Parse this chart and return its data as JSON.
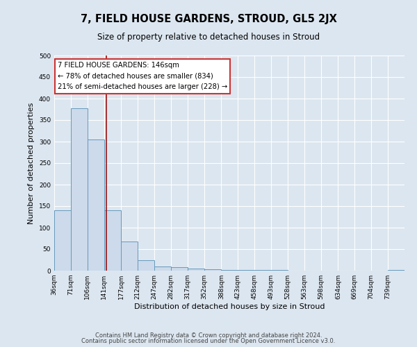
{
  "title": "7, FIELD HOUSE GARDENS, STROUD, GL5 2JX",
  "subtitle": "Size of property relative to detached houses in Stroud",
  "xlabel": "Distribution of detached houses by size in Stroud",
  "ylabel": "Number of detached properties",
  "footer_line1": "Contains HM Land Registry data © Crown copyright and database right 2024.",
  "footer_line2": "Contains public sector information licensed under the Open Government Licence v3.0.",
  "bin_labels": [
    "36sqm",
    "71sqm",
    "106sqm",
    "141sqm",
    "177sqm",
    "212sqm",
    "247sqm",
    "282sqm",
    "317sqm",
    "352sqm",
    "388sqm",
    "423sqm",
    "458sqm",
    "493sqm",
    "528sqm",
    "563sqm",
    "598sqm",
    "634sqm",
    "669sqm",
    "704sqm",
    "739sqm"
  ],
  "bar_heights": [
    140,
    378,
    305,
    141,
    68,
    24,
    10,
    8,
    5,
    3,
    2,
    1,
    1,
    1,
    0,
    0,
    0,
    0,
    0,
    0,
    2
  ],
  "bar_color": "#ccdaeb",
  "bar_edge_color": "#6699bb",
  "vline_x": 146,
  "bin_edges": [
    36,
    71,
    106,
    141,
    177,
    212,
    247,
    282,
    317,
    352,
    388,
    423,
    458,
    493,
    528,
    563,
    598,
    634,
    669,
    704,
    739
  ],
  "bin_width": 35,
  "annotation_text_line1": "7 FIELD HOUSE GARDENS: 146sqm",
  "annotation_text_line2": "← 78% of detached houses are smaller (834)",
  "annotation_text_line3": "21% of semi-detached houses are larger (228) →",
  "vline_color": "#991111",
  "ylim": [
    0,
    500
  ],
  "background_color": "#dce6f0",
  "plot_bg_color": "#dce6f0",
  "grid_color": "#ffffff",
  "title_fontsize": 10.5,
  "subtitle_fontsize": 8.5,
  "ylabel_fontsize": 8,
  "xlabel_fontsize": 8,
  "tick_fontsize": 6.5,
  "footer_fontsize": 6
}
